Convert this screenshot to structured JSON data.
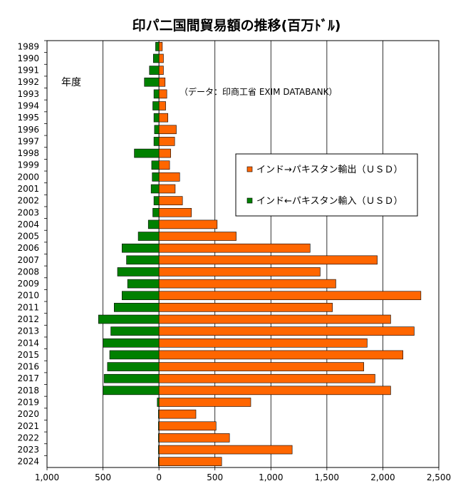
{
  "chart_data": {
    "type": "bar",
    "orientation": "horizontal",
    "title": "印パ二国間貿易額の推移(百万ﾄﾞﾙ)",
    "ylabel": "年度",
    "annotation": "（データ：印商工省 EXIM DATABANK）",
    "xlim": [
      -1000,
      2500
    ],
    "x_ticks": [
      "1,000",
      "500",
      "0",
      "500",
      "1,000",
      "1,500",
      "2,000",
      "2,500"
    ],
    "grid": true,
    "legend_position": "right-upper",
    "categories": [
      "1989",
      "1990",
      "1991",
      "1992",
      "1993",
      "1994",
      "1995",
      "1996",
      "1997",
      "1998",
      "1999",
      "2000",
      "2001",
      "2002",
      "2003",
      "2004",
      "2005",
      "2006",
      "2007",
      "2008",
      "2009",
      "2010",
      "2011",
      "2012",
      "2013",
      "2014",
      "2015",
      "2016",
      "2017",
      "2018",
      "2019",
      "2020",
      "2021",
      "2022",
      "2023",
      "2024"
    ],
    "series": [
      {
        "name": "インド→パキスタン輸出（ＵＳＤ）",
        "color": "#ff6600",
        "direction": "right",
        "values": [
          30,
          40,
          40,
          55,
          70,
          60,
          80,
          155,
          140,
          105,
          95,
          185,
          145,
          210,
          290,
          520,
          690,
          1350,
          1950,
          1440,
          1580,
          2340,
          1550,
          2070,
          2280,
          1860,
          2180,
          1830,
          1930,
          2070,
          820,
          330,
          510,
          630,
          1190,
          560
        ]
      },
      {
        "name": "インド←パキスタン輸入（ＵＳＤ）",
        "color": "#008000",
        "direction": "left",
        "values": [
          30,
          50,
          85,
          130,
          45,
          55,
          45,
          40,
          45,
          220,
          65,
          60,
          70,
          45,
          55,
          95,
          185,
          330,
          290,
          370,
          280,
          330,
          400,
          540,
          430,
          500,
          440,
          460,
          490,
          500,
          15,
          5,
          5,
          5,
          5,
          5
        ]
      }
    ]
  }
}
